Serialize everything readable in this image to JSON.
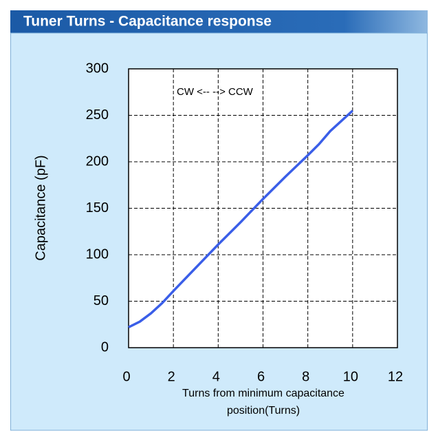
{
  "chart_data": {
    "type": "line",
    "title": "Tuner Turns - Capacitance response",
    "annotation": "CW <-- --> CCW",
    "y_label": "Capacitance (pF)",
    "x_label": [
      "Turns from minimum capacitance",
      "position(Turns)"
    ],
    "x": [
      0,
      0.5,
      1,
      1.5,
      2,
      3,
      4,
      5,
      6,
      7,
      8,
      8.5,
      9,
      10
    ],
    "series": [
      {
        "color": "#3a5ee8",
        "values": [
          22,
          28,
          37,
          48,
          61,
          86,
          111,
          135,
          160,
          184,
          207,
          219,
          233,
          255
        ]
      }
    ],
    "xlim": [
      0,
      12
    ],
    "xticks": [
      0,
      2,
      4,
      6,
      8,
      10,
      12
    ],
    "ylim": [
      0,
      300
    ],
    "yticks": [
      0,
      50,
      100,
      150,
      200,
      250,
      300
    ],
    "grid": true
  }
}
